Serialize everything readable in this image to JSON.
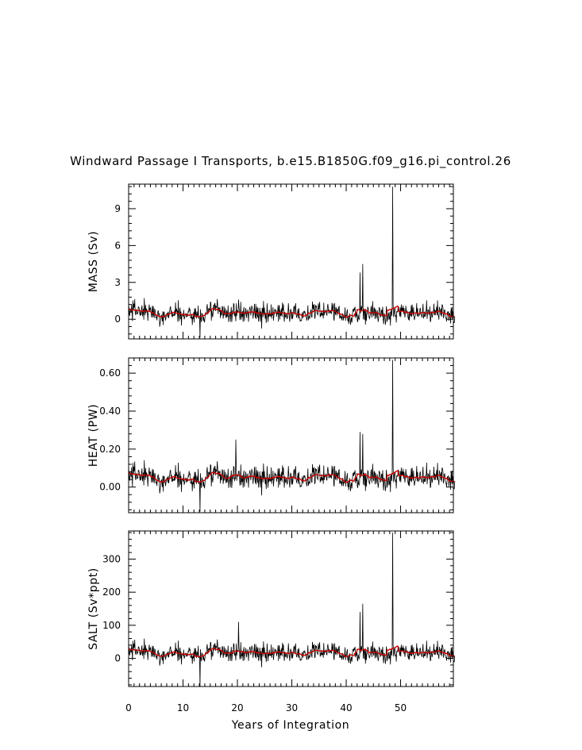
{
  "title": "Windward Passage I Transports, b.e15.B1850G.f09_g16.pi_control.26",
  "xlabel": "Years of Integration",
  "colors": {
    "raw": "#000000",
    "smoothed": "#cc0000",
    "axes": "#000000"
  },
  "chart_data": [
    {
      "type": "line",
      "ylabel": "MASS (Sv)",
      "xlim": [
        0,
        59.7
      ],
      "ylim": [
        -1.6,
        11.0
      ],
      "x_ticks": [
        0,
        10,
        20,
        30,
        40,
        50
      ],
      "y_ticks": [
        0,
        3,
        6,
        9
      ],
      "y_tick_labels": [
        "0",
        "3",
        "6",
        "9"
      ],
      "grid": false,
      "series": [
        {
          "role": "monthly",
          "base": 0.5,
          "noise": 0.8,
          "min": -1.5
        },
        {
          "role": "smoothed",
          "base": 0.5
        }
      ],
      "features": [
        {
          "x": 13.1,
          "y": -1.5
        },
        {
          "x": 20.2,
          "y": 1.6
        },
        {
          "x": 42.5,
          "y": 3.8
        },
        {
          "x": 43.0,
          "y": 4.5
        },
        {
          "x": 48.5,
          "y": 10.8
        }
      ]
    },
    {
      "type": "line",
      "ylabel": "HEAT (PW)",
      "xlim": [
        0,
        59.7
      ],
      "ylim": [
        -0.135,
        0.68
      ],
      "x_ticks": [
        0,
        10,
        20,
        30,
        40,
        50
      ],
      "y_ticks": [
        0.0,
        0.2,
        0.4,
        0.6
      ],
      "y_tick_labels": [
        "0.00",
        "0.20",
        "0.40",
        "0.60"
      ],
      "grid": false,
      "series": [
        {
          "role": "monthly",
          "base": 0.05,
          "noise": 0.06,
          "min": -0.13
        },
        {
          "role": "smoothed",
          "base": 0.05
        }
      ],
      "features": [
        {
          "x": 13.1,
          "y": -0.13
        },
        {
          "x": 19.7,
          "y": 0.25
        },
        {
          "x": 42.5,
          "y": 0.29
        },
        {
          "x": 43.0,
          "y": 0.28
        },
        {
          "x": 48.5,
          "y": 0.67
        }
      ]
    },
    {
      "type": "line",
      "ylabel": "SALT (Sv*ppt)",
      "xlim": [
        0,
        59.7
      ],
      "ylim": [
        -85,
        385
      ],
      "x_ticks": [
        0,
        10,
        20,
        30,
        40,
        50
      ],
      "x_tick_labels": [
        "0",
        "10",
        "20",
        "30",
        "40",
        "50"
      ],
      "y_ticks": [
        0,
        100,
        200,
        300
      ],
      "y_tick_labels": [
        "0",
        "100",
        "200",
        "300"
      ],
      "grid": false,
      "series": [
        {
          "role": "monthly",
          "base": 17,
          "noise": 28,
          "min": -85
        },
        {
          "role": "smoothed",
          "base": 17
        }
      ],
      "features": [
        {
          "x": 13.1,
          "y": -85
        },
        {
          "x": 20.2,
          "y": 110
        },
        {
          "x": 42.5,
          "y": 140
        },
        {
          "x": 43.0,
          "y": 165
        },
        {
          "x": 48.5,
          "y": 380
        }
      ]
    }
  ]
}
